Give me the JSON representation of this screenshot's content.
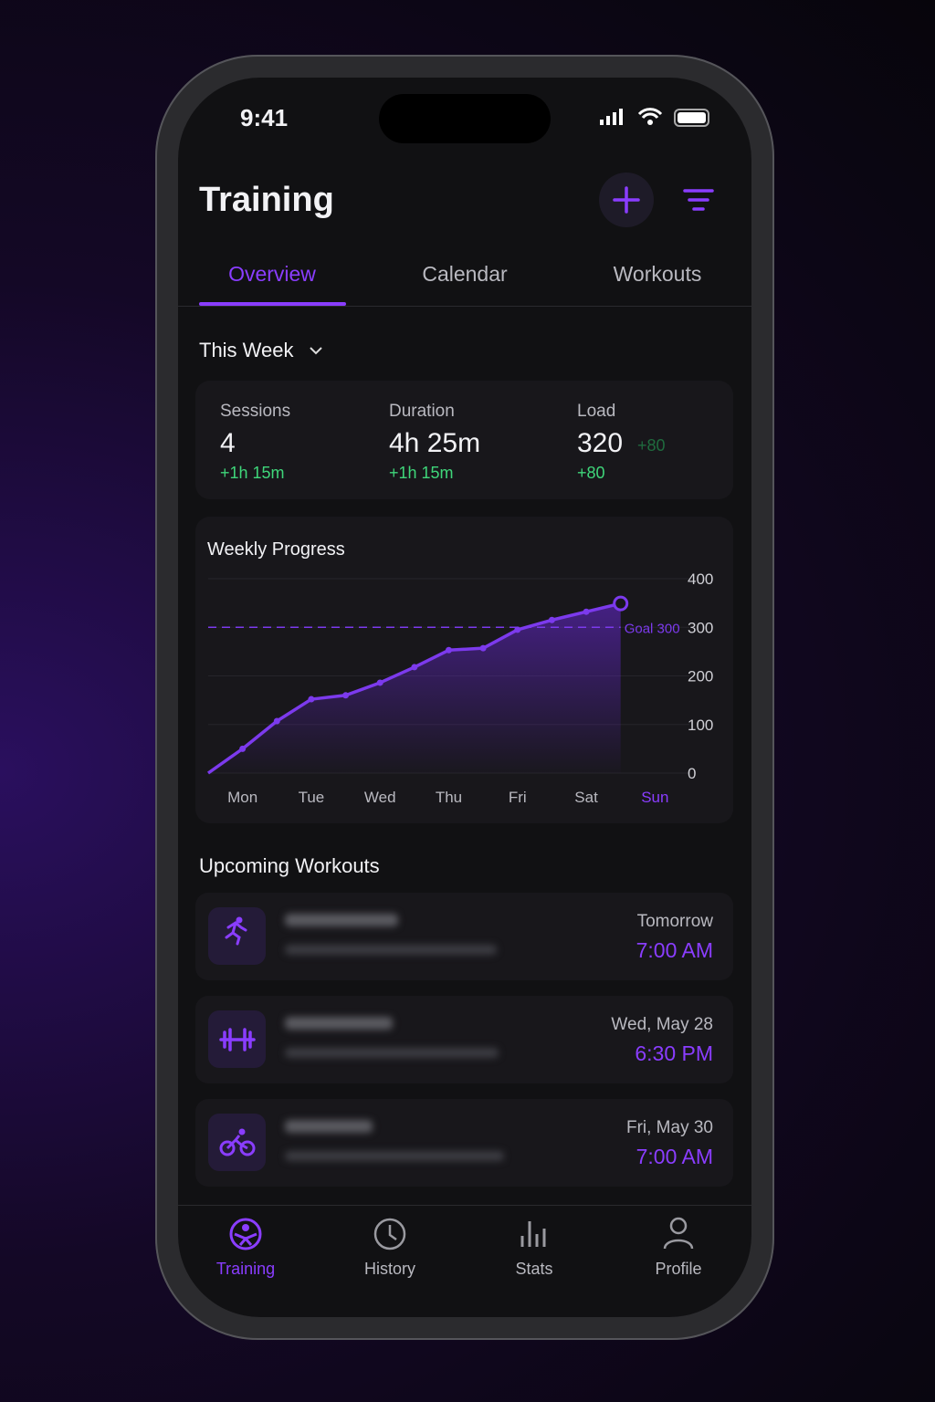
{
  "status_bar": {
    "time": "9:41"
  },
  "header": {
    "title": "Training"
  },
  "tabs": [
    "Overview",
    "Calendar",
    "Workouts"
  ],
  "period": "This Week",
  "stats": [
    {
      "label": "Sessions",
      "value": 4,
      "change": "+1h 15m"
    },
    {
      "label": "Duration",
      "value": "4h 25m",
      "change": "+1h 15m"
    },
    {
      "label": "Load",
      "value": 320,
      "badge": "+80",
      "change": "+80"
    }
  ],
  "chart_data": {
    "type": "line",
    "title": "Weekly Progress",
    "color": "#7c3aed",
    "x": [
      -0.5,
      0,
      0.5,
      1,
      1.5,
      2,
      2.5,
      3,
      3.5,
      4,
      4.5,
      5,
      5.5
    ],
    "values": [
      0,
      50,
      107,
      152,
      160,
      186,
      218,
      253,
      257,
      295,
      315,
      332,
      349
    ],
    "xlim": [
      -0.5,
      6.5
    ],
    "xticks": [
      {
        "value": 0,
        "label": "Mon"
      },
      {
        "value": 1,
        "label": "Tue"
      },
      {
        "value": 2,
        "label": "Wed"
      },
      {
        "value": 3,
        "label": "Thu"
      },
      {
        "value": 4,
        "label": "Fri"
      },
      {
        "value": 5,
        "label": "Sat"
      },
      {
        "value": 6,
        "label": "Sun"
      }
    ],
    "ylim": [
      0,
      400
    ],
    "yticks": [
      0,
      100,
      200,
      300,
      400
    ],
    "grid": true,
    "goal": {
      "value": 300,
      "label": "Goal 300"
    }
  },
  "upcoming": {
    "title": "Upcoming Workouts",
    "items": [
      {
        "day": "Tomorrow",
        "time": "7:00 AM"
      },
      {
        "day": "Wed, May 28",
        "time": "6:30 PM"
      },
      {
        "day": "Fri, May 30",
        "time": "7:00 AM"
      }
    ]
  },
  "nav": [
    "Training",
    "History",
    "Stats",
    "Profile"
  ]
}
